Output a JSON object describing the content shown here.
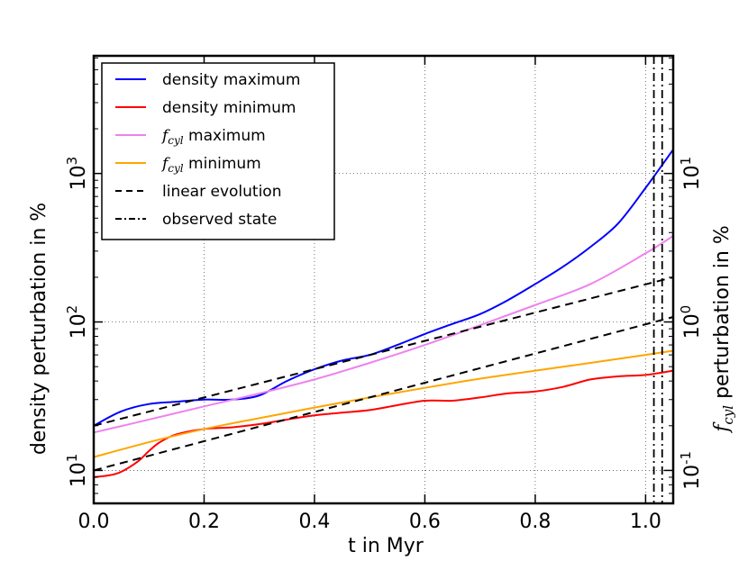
{
  "chart_data": {
    "type": "line",
    "xlabel": "t in Myr",
    "ylabel_left": "density perturbation in %",
    "ylabel_right_symbol": "f",
    "ylabel_right_subscript": "cyl",
    "ylabel_right_suffix": " perturbation in %",
    "xlim": [
      0.0,
      1.05
    ],
    "ylim_left": [
      6,
      6200
    ],
    "yscale": "log",
    "grid": true,
    "legend_position": "top-left",
    "x_ticks": [
      {
        "value": 0.0,
        "label": "0.0"
      },
      {
        "value": 0.2,
        "label": "0.2"
      },
      {
        "value": 0.4,
        "label": "0.4"
      },
      {
        "value": 0.6,
        "label": "0.6"
      },
      {
        "value": 0.8,
        "label": "0.8"
      },
      {
        "value": 1.0,
        "label": "1.0"
      }
    ],
    "y_left_ticks": [
      {
        "value": 10,
        "base": "10",
        "exp": "1"
      },
      {
        "value": 100,
        "base": "10",
        "exp": "2"
      },
      {
        "value": 1000,
        "base": "10",
        "exp": "3"
      }
    ],
    "y_right_ticks": [
      {
        "value": 0.1,
        "base": "10",
        "exp": "-1"
      },
      {
        "value": 1,
        "base": "10",
        "exp": "0"
      },
      {
        "value": 10,
        "base": "10",
        "exp": "1"
      }
    ],
    "right_axis_scale": 100,
    "series": [
      {
        "name": "density maximum",
        "legend_main": "density maximum",
        "color": "#0000ff",
        "style": "solid",
        "x": [
          0.0,
          0.05,
          0.1,
          0.15,
          0.2,
          0.25,
          0.3,
          0.35,
          0.4,
          0.45,
          0.5,
          0.55,
          0.6,
          0.65,
          0.7,
          0.75,
          0.8,
          0.85,
          0.9,
          0.95,
          1.0,
          1.05
        ],
        "y": [
          20,
          25,
          28,
          29,
          30,
          30,
          32,
          40,
          48,
          55,
          60,
          70,
          83,
          97,
          113,
          140,
          180,
          235,
          320,
          460,
          800,
          1450
        ]
      },
      {
        "name": "density minimum",
        "legend_main": "density minimum",
        "color": "#ff0000",
        "style": "solid",
        "x": [
          0.0,
          0.03,
          0.05,
          0.08,
          0.1,
          0.12,
          0.15,
          0.2,
          0.25,
          0.3,
          0.35,
          0.4,
          0.45,
          0.5,
          0.55,
          0.6,
          0.65,
          0.7,
          0.75,
          0.8,
          0.85,
          0.9,
          0.95,
          1.0,
          1.05
        ],
        "y": [
          9,
          9.3,
          9.8,
          11.5,
          13.5,
          15.5,
          17.5,
          19,
          19.5,
          20.5,
          22,
          23.5,
          24.5,
          25.5,
          27.5,
          29.5,
          29.5,
          31,
          33,
          34,
          36.5,
          41,
          43,
          44,
          47
        ]
      },
      {
        "name": "fcyl maximum",
        "legend_sym": "f",
        "legend_sub": "cyl",
        "legend_main": " maximum",
        "color": "#ee82ee",
        "style": "solid",
        "x": [
          0.0,
          0.1,
          0.2,
          0.3,
          0.4,
          0.5,
          0.6,
          0.7,
          0.8,
          0.9,
          1.0,
          1.05
        ],
        "y": [
          18,
          22,
          27,
          33,
          41,
          53,
          70,
          95,
          130,
          180,
          290,
          380
        ]
      },
      {
        "name": "fcyl minimum",
        "legend_sym": "f",
        "legend_sub": "cyl",
        "legend_main": " minimum",
        "color": "#ffa500",
        "style": "solid",
        "x": [
          0.0,
          0.1,
          0.2,
          0.3,
          0.4,
          0.5,
          0.6,
          0.7,
          0.8,
          0.9,
          1.0,
          1.05
        ],
        "y": [
          12.3,
          15.5,
          19,
          22.5,
          26.5,
          31,
          36,
          41.5,
          47,
          53,
          60,
          64
        ]
      },
      {
        "name": "linear evolution",
        "legend_main": "linear evolution",
        "color": "#000000",
        "style": "dashed",
        "x": [
          0.0,
          1.05
        ],
        "y": [
          20,
          200
        ]
      },
      {
        "name": "linear evolution 2",
        "color": "#000000",
        "style": "dashed",
        "x": [
          0.0,
          1.05
        ],
        "y": [
          10,
          108
        ]
      },
      {
        "name": "observed state",
        "legend_main": "observed state",
        "color": "#000000",
        "style": "dashdot",
        "vlines": [
          1.015,
          1.03
        ]
      }
    ]
  }
}
